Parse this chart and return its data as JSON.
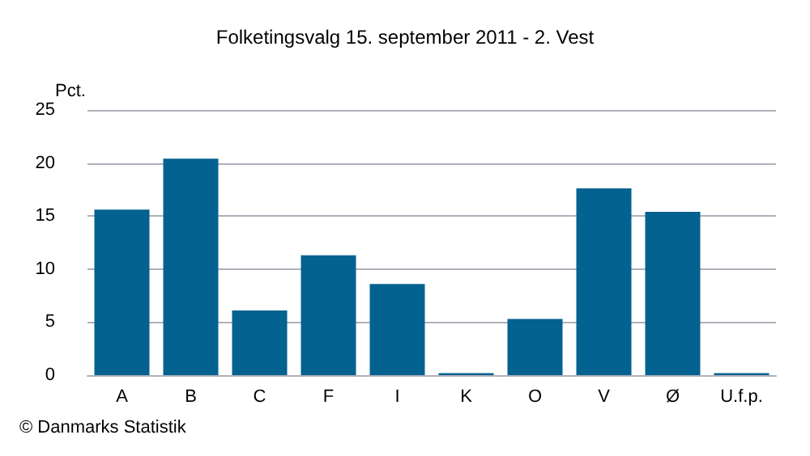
{
  "chart_data": {
    "type": "bar",
    "title": "Folketingsvalg 15. september 2011 - 2. Vest",
    "ylabel": "Pct.",
    "categories": [
      "A",
      "B",
      "C",
      "F",
      "I",
      "K",
      "O",
      "V",
      "Ø",
      "U.f.p."
    ],
    "values": [
      15.6,
      20.4,
      6.1,
      11.3,
      8.6,
      0.2,
      5.3,
      17.6,
      15.4,
      0.2
    ],
    "color": "#03628f",
    "ylim": [
      0,
      25
    ],
    "yticks": [
      0,
      5,
      10,
      15,
      20,
      25
    ],
    "grid": "y",
    "annotations": [
      "© Danmarks Statistik"
    ]
  }
}
